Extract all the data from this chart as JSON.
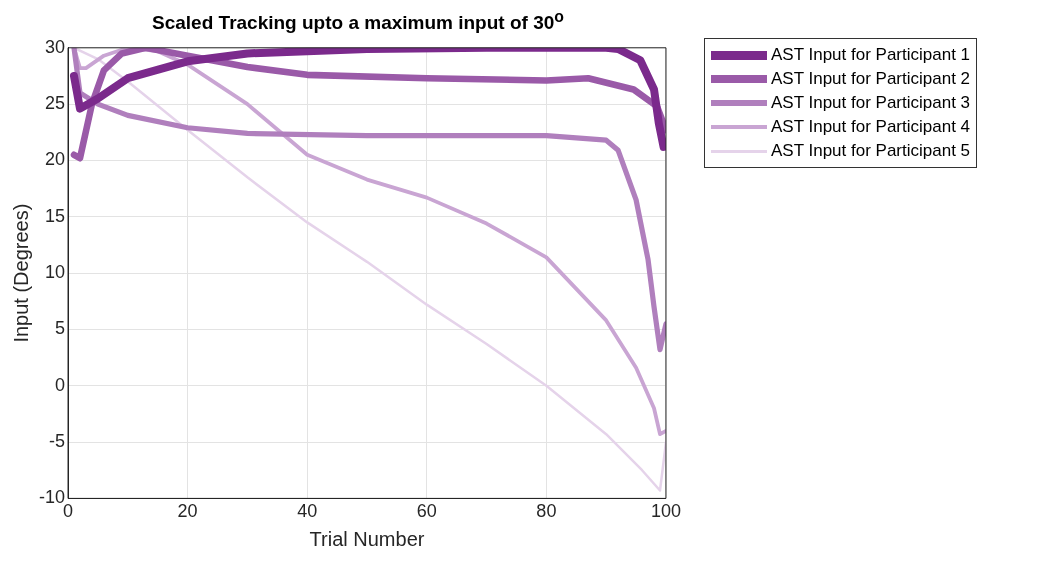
{
  "chart_data": {
    "type": "line",
    "title": "Scaled Tracking upto a maximum input of 30$^{o}$",
    "xlabel": "Trial Number",
    "ylabel": "Input (Degrees)",
    "xlim": [
      0,
      100
    ],
    "xticks": [
      0,
      20,
      40,
      60,
      80,
      100
    ],
    "ylim": [
      -10,
      30
    ],
    "yticks": [
      -10,
      -5,
      0,
      5,
      10,
      15,
      20,
      25,
      30
    ],
    "grid": true,
    "legend": "top right",
    "line_style": "solid",
    "marker": "none",
    "series": [
      {
        "name": "AST Input for Participant 1",
        "color": "#7b2a8c",
        "x": [
          1,
          2,
          5,
          10,
          20,
          30,
          50,
          70,
          90,
          92,
          95.7,
          98,
          98.8,
          99.6,
          100
        ],
        "values": [
          27.5,
          24.6,
          25.5,
          27.3,
          28.8,
          29.5,
          29.9,
          30,
          30,
          29.9,
          28.9,
          26.3,
          23.3,
          21.2,
          21.4
        ]
      },
      {
        "name": "AST Input for Participant 2",
        "color": "#9a5aa8",
        "x": [
          1,
          2,
          4,
          6,
          9,
          13,
          20,
          30,
          40,
          60,
          80,
          87,
          94.6,
          98.5,
          100
        ],
        "values": [
          20.5,
          20.2,
          25,
          28,
          29.5,
          30,
          29.3,
          28.3,
          27.6,
          27.3,
          27.1,
          27.3,
          26.3,
          24.8,
          22.7
        ]
      },
      {
        "name": "AST Input for Participant 3",
        "color": "#b07fbd",
        "x": [
          1,
          2,
          5,
          10,
          20,
          30,
          50,
          80,
          90,
          92,
          95,
          97,
          98,
          99,
          100
        ],
        "values": [
          30,
          26,
          25,
          24,
          22.9,
          22.4,
          22.2,
          22.2,
          21.8,
          20.9,
          16.5,
          11.2,
          7,
          3.2,
          5.5
        ]
      },
      {
        "name": "AST Input for Participant 4",
        "color": "#c9a5d3",
        "x": [
          1,
          2,
          3,
          6,
          10,
          15,
          20,
          30,
          40,
          50,
          60,
          70,
          80,
          90,
          95,
          98,
          99,
          100
        ],
        "values": [
          30,
          28.2,
          28.2,
          29.3,
          30,
          29.7,
          28.5,
          25,
          20.5,
          18.3,
          16.7,
          14.4,
          11.4,
          5.8,
          1.6,
          -2,
          -4.3,
          -4
        ]
      },
      {
        "name": "AST Input for Participant 5",
        "color": "#e5d3ea",
        "x": [
          1,
          5,
          10,
          20,
          30,
          40,
          50,
          60,
          70,
          80,
          90,
          96,
          99,
          100
        ],
        "values": [
          30,
          29,
          27,
          22.7,
          18.5,
          14.5,
          11,
          7.2,
          3.7,
          0,
          -4.3,
          -7.5,
          -9.3,
          -5
        ]
      }
    ]
  }
}
